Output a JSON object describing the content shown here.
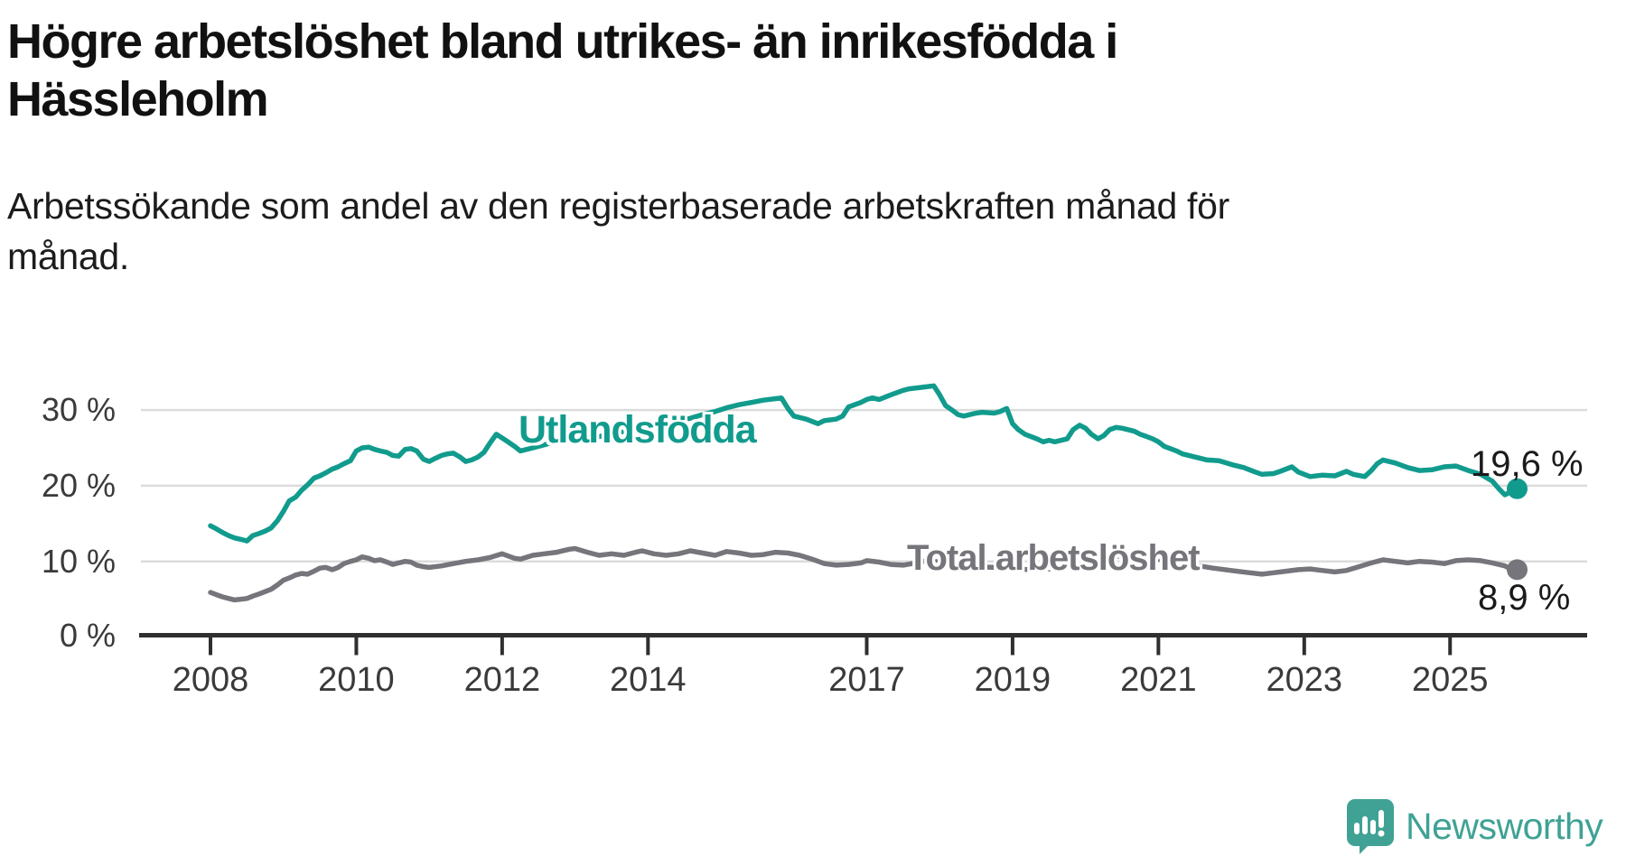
{
  "title_lines": [
    "Högre arbetslöshet bland utrikes- än inrikesfödda i",
    "Hässleholm"
  ],
  "subtitle": "Arbetssökande som andel av den registerbaserade arbetskraften månad för månad.",
  "chart_data": {
    "type": "line",
    "title": "Högre arbetslöshet bland utrikes- än inrikesfödda i Hässleholm",
    "subtitle": "Arbetssökande som andel av den registerbaserade arbetskraften månad för månad.",
    "grid": true,
    "legend": "inline-labels",
    "x_axis": {
      "ticks": [
        2008,
        2010,
        2012,
        2014,
        2017,
        2019,
        2021,
        2023,
        2025
      ],
      "range": [
        2007.0,
        2026.9
      ]
    },
    "y_axis": {
      "ticks": [
        0,
        10,
        20,
        30
      ],
      "unit": "%",
      "tick_labels": [
        "0 %",
        "10 %",
        "20 %",
        "30 %"
      ],
      "range": [
        0,
        36
      ]
    },
    "series": [
      {
        "name": "Utlandsfödda",
        "color": "#119b8d",
        "end_annotation": "19,6 %",
        "end_value": 19.6,
        "points": [
          [
            2008.0,
            14.7
          ],
          [
            2008.08,
            14.3
          ],
          [
            2008.17,
            13.8
          ],
          [
            2008.25,
            13.4
          ],
          [
            2008.33,
            13.1
          ],
          [
            2008.42,
            12.9
          ],
          [
            2008.5,
            12.7
          ],
          [
            2008.58,
            13.4
          ],
          [
            2008.67,
            13.7
          ],
          [
            2008.75,
            14.0
          ],
          [
            2008.83,
            14.4
          ],
          [
            2008.92,
            15.4
          ],
          [
            2009.0,
            16.6
          ],
          [
            2009.08,
            18.0
          ],
          [
            2009.17,
            18.5
          ],
          [
            2009.25,
            19.4
          ],
          [
            2009.33,
            20.1
          ],
          [
            2009.42,
            21.0
          ],
          [
            2009.5,
            21.3
          ],
          [
            2009.58,
            21.7
          ],
          [
            2009.67,
            22.2
          ],
          [
            2009.75,
            22.5
          ],
          [
            2009.83,
            22.9
          ],
          [
            2009.92,
            23.3
          ],
          [
            2010.0,
            24.6
          ],
          [
            2010.08,
            25.0
          ],
          [
            2010.17,
            25.1
          ],
          [
            2010.25,
            24.8
          ],
          [
            2010.33,
            24.6
          ],
          [
            2010.42,
            24.4
          ],
          [
            2010.5,
            24.0
          ],
          [
            2010.58,
            23.9
          ],
          [
            2010.67,
            24.8
          ],
          [
            2010.75,
            24.9
          ],
          [
            2010.83,
            24.6
          ],
          [
            2010.92,
            23.5
          ],
          [
            2011.0,
            23.2
          ],
          [
            2011.08,
            23.6
          ],
          [
            2011.17,
            24.0
          ],
          [
            2011.25,
            24.2
          ],
          [
            2011.33,
            24.3
          ],
          [
            2011.42,
            23.8
          ],
          [
            2011.5,
            23.2
          ],
          [
            2011.58,
            23.4
          ],
          [
            2011.67,
            23.8
          ],
          [
            2011.75,
            24.4
          ],
          [
            2011.83,
            25.6
          ],
          [
            2011.92,
            26.8
          ],
          [
            2012.0,
            26.3
          ],
          [
            2012.08,
            25.8
          ],
          [
            2012.17,
            25.2
          ],
          [
            2012.25,
            24.6
          ],
          [
            2012.42,
            25.0
          ],
          [
            2012.58,
            25.4
          ],
          [
            2012.75,
            25.9
          ],
          [
            2012.92,
            26.3
          ],
          [
            2013.08,
            26.5
          ],
          [
            2013.25,
            26.3
          ],
          [
            2013.42,
            26.7
          ],
          [
            2013.58,
            27.0
          ],
          [
            2013.75,
            27.3
          ],
          [
            2013.92,
            27.7
          ],
          [
            2014.08,
            28.0
          ],
          [
            2014.25,
            28.3
          ],
          [
            2014.42,
            28.6
          ],
          [
            2014.58,
            28.9
          ],
          [
            2014.75,
            29.4
          ],
          [
            2014.92,
            29.8
          ],
          [
            2015.08,
            30.3
          ],
          [
            2015.25,
            30.7
          ],
          [
            2015.42,
            31.0
          ],
          [
            2015.58,
            31.3
          ],
          [
            2015.75,
            31.5
          ],
          [
            2015.83,
            31.6
          ],
          [
            2015.92,
            30.2
          ],
          [
            2016.0,
            29.2
          ],
          [
            2016.17,
            28.8
          ],
          [
            2016.33,
            28.2
          ],
          [
            2016.42,
            28.6
          ],
          [
            2016.58,
            28.8
          ],
          [
            2016.67,
            29.2
          ],
          [
            2016.75,
            30.4
          ],
          [
            2016.92,
            31.0
          ],
          [
            2017.0,
            31.4
          ],
          [
            2017.08,
            31.6
          ],
          [
            2017.17,
            31.4
          ],
          [
            2017.33,
            32.0
          ],
          [
            2017.5,
            32.6
          ],
          [
            2017.58,
            32.8
          ],
          [
            2017.75,
            33.0
          ],
          [
            2017.92,
            33.2
          ],
          [
            2018.0,
            32.0
          ],
          [
            2018.08,
            30.6
          ],
          [
            2018.17,
            30.0
          ],
          [
            2018.25,
            29.4
          ],
          [
            2018.33,
            29.2
          ],
          [
            2018.5,
            29.6
          ],
          [
            2018.58,
            29.7
          ],
          [
            2018.75,
            29.6
          ],
          [
            2018.83,
            29.8
          ],
          [
            2018.92,
            30.2
          ],
          [
            2019.0,
            28.2
          ],
          [
            2019.08,
            27.4
          ],
          [
            2019.17,
            26.8
          ],
          [
            2019.33,
            26.2
          ],
          [
            2019.42,
            25.8
          ],
          [
            2019.5,
            26.0
          ],
          [
            2019.58,
            25.8
          ],
          [
            2019.75,
            26.2
          ],
          [
            2019.83,
            27.4
          ],
          [
            2019.92,
            28.0
          ],
          [
            2020.0,
            27.6
          ],
          [
            2020.08,
            26.8
          ],
          [
            2020.17,
            26.2
          ],
          [
            2020.25,
            26.6
          ],
          [
            2020.33,
            27.4
          ],
          [
            2020.42,
            27.7
          ],
          [
            2020.5,
            27.6
          ],
          [
            2020.67,
            27.2
          ],
          [
            2020.75,
            26.8
          ],
          [
            2020.92,
            26.2
          ],
          [
            2021.0,
            25.8
          ],
          [
            2021.08,
            25.2
          ],
          [
            2021.25,
            24.6
          ],
          [
            2021.33,
            24.2
          ],
          [
            2021.5,
            23.8
          ],
          [
            2021.67,
            23.4
          ],
          [
            2021.83,
            23.3
          ],
          [
            2022.0,
            22.8
          ],
          [
            2022.17,
            22.4
          ],
          [
            2022.33,
            21.8
          ],
          [
            2022.42,
            21.5
          ],
          [
            2022.58,
            21.6
          ],
          [
            2022.67,
            21.9
          ],
          [
            2022.83,
            22.5
          ],
          [
            2022.92,
            21.8
          ],
          [
            2023.08,
            21.2
          ],
          [
            2023.25,
            21.4
          ],
          [
            2023.42,
            21.3
          ],
          [
            2023.58,
            21.9
          ],
          [
            2023.67,
            21.5
          ],
          [
            2023.83,
            21.2
          ],
          [
            2023.92,
            22.0
          ],
          [
            2024.0,
            22.9
          ],
          [
            2024.08,
            23.4
          ],
          [
            2024.25,
            23.0
          ],
          [
            2024.42,
            22.4
          ],
          [
            2024.58,
            22.0
          ],
          [
            2024.75,
            22.1
          ],
          [
            2024.92,
            22.5
          ],
          [
            2025.08,
            22.6
          ],
          [
            2025.25,
            22.0
          ],
          [
            2025.42,
            21.5
          ],
          [
            2025.58,
            20.6
          ],
          [
            2025.67,
            19.6
          ],
          [
            2025.75,
            18.8
          ],
          [
            2025.92,
            19.6
          ]
        ]
      },
      {
        "name": "Total arbetslöshet",
        "color": "#76757b",
        "end_annotation": "8,9 %",
        "end_value": 8.9,
        "points": [
          [
            2008.0,
            5.9
          ],
          [
            2008.08,
            5.6
          ],
          [
            2008.17,
            5.3
          ],
          [
            2008.25,
            5.1
          ],
          [
            2008.33,
            4.9
          ],
          [
            2008.42,
            5.0
          ],
          [
            2008.5,
            5.1
          ],
          [
            2008.58,
            5.4
          ],
          [
            2008.67,
            5.7
          ],
          [
            2008.75,
            6.0
          ],
          [
            2008.83,
            6.3
          ],
          [
            2008.92,
            6.9
          ],
          [
            2009.0,
            7.5
          ],
          [
            2009.08,
            7.8
          ],
          [
            2009.17,
            8.2
          ],
          [
            2009.25,
            8.4
          ],
          [
            2009.33,
            8.3
          ],
          [
            2009.42,
            8.7
          ],
          [
            2009.5,
            9.1
          ],
          [
            2009.58,
            9.2
          ],
          [
            2009.67,
            8.9
          ],
          [
            2009.75,
            9.2
          ],
          [
            2009.83,
            9.7
          ],
          [
            2009.92,
            10.0
          ],
          [
            2010.0,
            10.2
          ],
          [
            2010.08,
            10.6
          ],
          [
            2010.17,
            10.4
          ],
          [
            2010.25,
            10.1
          ],
          [
            2010.33,
            10.2
          ],
          [
            2010.42,
            9.9
          ],
          [
            2010.5,
            9.6
          ],
          [
            2010.58,
            9.8
          ],
          [
            2010.67,
            10.0
          ],
          [
            2010.75,
            9.9
          ],
          [
            2010.83,
            9.5
          ],
          [
            2010.92,
            9.3
          ],
          [
            2011.0,
            9.2
          ],
          [
            2011.17,
            9.4
          ],
          [
            2011.33,
            9.7
          ],
          [
            2011.5,
            10.0
          ],
          [
            2011.67,
            10.2
          ],
          [
            2011.83,
            10.5
          ],
          [
            2012.0,
            11.0
          ],
          [
            2012.17,
            10.4
          ],
          [
            2012.25,
            10.3
          ],
          [
            2012.42,
            10.8
          ],
          [
            2012.58,
            11.0
          ],
          [
            2012.75,
            11.2
          ],
          [
            2012.92,
            11.6
          ],
          [
            2013.0,
            11.7
          ],
          [
            2013.17,
            11.2
          ],
          [
            2013.33,
            10.8
          ],
          [
            2013.5,
            11.0
          ],
          [
            2013.67,
            10.8
          ],
          [
            2013.83,
            11.2
          ],
          [
            2013.92,
            11.4
          ],
          [
            2014.08,
            11.0
          ],
          [
            2014.25,
            10.8
          ],
          [
            2014.42,
            11.0
          ],
          [
            2014.58,
            11.4
          ],
          [
            2014.75,
            11.1
          ],
          [
            2014.92,
            10.8
          ],
          [
            2015.08,
            11.3
          ],
          [
            2015.25,
            11.1
          ],
          [
            2015.42,
            10.8
          ],
          [
            2015.58,
            10.9
          ],
          [
            2015.75,
            11.2
          ],
          [
            2015.92,
            11.1
          ],
          [
            2016.08,
            10.8
          ],
          [
            2016.25,
            10.3
          ],
          [
            2016.42,
            9.7
          ],
          [
            2016.58,
            9.5
          ],
          [
            2016.75,
            9.6
          ],
          [
            2016.92,
            9.8
          ],
          [
            2017.0,
            10.1
          ],
          [
            2017.17,
            9.9
          ],
          [
            2017.33,
            9.6
          ],
          [
            2017.5,
            9.5
          ],
          [
            2017.67,
            9.8
          ],
          [
            2017.83,
            10.1
          ],
          [
            2018.0,
            9.9
          ],
          [
            2018.25,
            9.6
          ],
          [
            2018.5,
            9.3
          ],
          [
            2018.75,
            9.2
          ],
          [
            2019.0,
            9.0
          ],
          [
            2019.25,
            8.9
          ],
          [
            2019.5,
            9.0
          ],
          [
            2019.75,
            9.2
          ],
          [
            2020.0,
            9.4
          ],
          [
            2020.25,
            10.3
          ],
          [
            2020.5,
            10.8
          ],
          [
            2020.75,
            10.6
          ],
          [
            2021.0,
            10.3
          ],
          [
            2021.25,
            9.9
          ],
          [
            2021.5,
            9.5
          ],
          [
            2021.75,
            9.1
          ],
          [
            2022.0,
            8.8
          ],
          [
            2022.25,
            8.5
          ],
          [
            2022.42,
            8.3
          ],
          [
            2022.58,
            8.5
          ],
          [
            2022.75,
            8.7
          ],
          [
            2022.92,
            8.9
          ],
          [
            2023.08,
            9.0
          ],
          [
            2023.25,
            8.8
          ],
          [
            2023.42,
            8.6
          ],
          [
            2023.58,
            8.8
          ],
          [
            2023.75,
            9.3
          ],
          [
            2023.92,
            9.8
          ],
          [
            2024.08,
            10.2
          ],
          [
            2024.25,
            10.0
          ],
          [
            2024.42,
            9.8
          ],
          [
            2024.58,
            10.0
          ],
          [
            2024.75,
            9.9
          ],
          [
            2024.92,
            9.7
          ],
          [
            2025.08,
            10.1
          ],
          [
            2025.25,
            10.2
          ],
          [
            2025.42,
            10.1
          ],
          [
            2025.58,
            9.8
          ],
          [
            2025.75,
            9.4
          ],
          [
            2025.83,
            9.0
          ],
          [
            2025.92,
            8.9
          ]
        ]
      }
    ]
  },
  "labels": {
    "utlandsfodda": "Utlandsfödda",
    "total": "Total arbetslöshet",
    "teal_end_value": "19,6 %",
    "gray_end_value": "8,9 %"
  },
  "logo": {
    "text": "Newsworthy"
  },
  "colors": {
    "teal_line": "#119b8d",
    "gray_line": "#76757b",
    "gridline": "#dcdcdc",
    "axis": "#2f2f2f",
    "logo_teal": "#3fa294"
  }
}
